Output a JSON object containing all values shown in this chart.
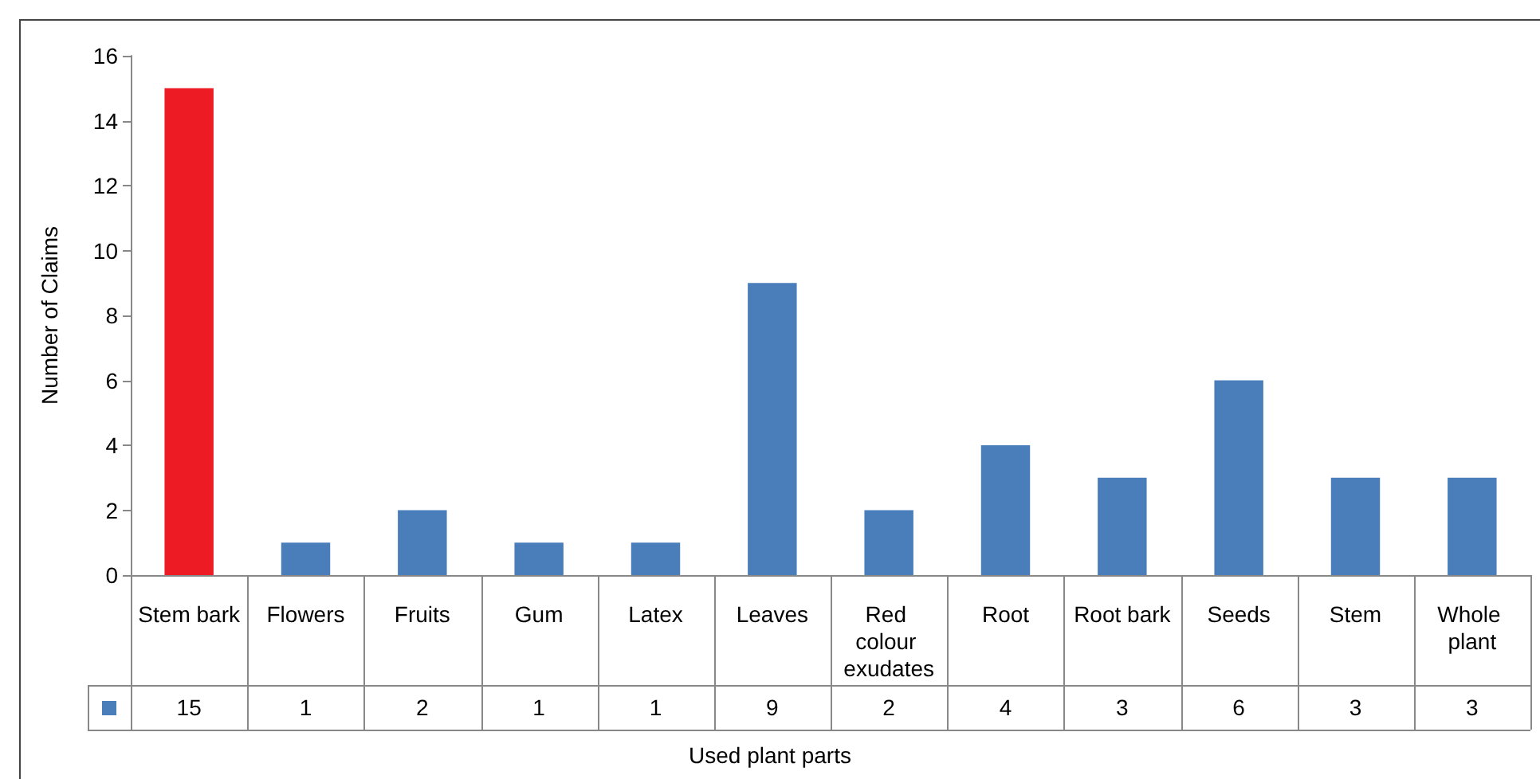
{
  "chart_data": {
    "type": "bar",
    "xlabel": "Used plant parts",
    "ylabel": "Number of Claims",
    "categories": [
      "Stem bark",
      "Flowers",
      "Fruits",
      "Gum",
      "Latex",
      "Leaves",
      "Red colour exudates",
      "Root",
      "Root bark",
      "Seeds",
      "Stem",
      "Whole plant"
    ],
    "values": [
      15,
      1,
      2,
      1,
      1,
      9,
      2,
      4,
      3,
      6,
      3,
      3
    ],
    "colors": [
      "#ed1c24",
      "#4a7ebb",
      "#4a7ebb",
      "#4a7ebb",
      "#4a7ebb",
      "#4a7ebb",
      "#4a7ebb",
      "#4a7ebb",
      "#4a7ebb",
      "#4a7ebb",
      "#4a7ebb",
      "#4a7ebb"
    ],
    "color": "#4a7ebb",
    "ylim": [
      0,
      16
    ],
    "yticks": [
      0,
      2,
      4,
      6,
      8,
      10,
      12,
      14,
      16
    ],
    "grid": false,
    "data_labels": true
  }
}
